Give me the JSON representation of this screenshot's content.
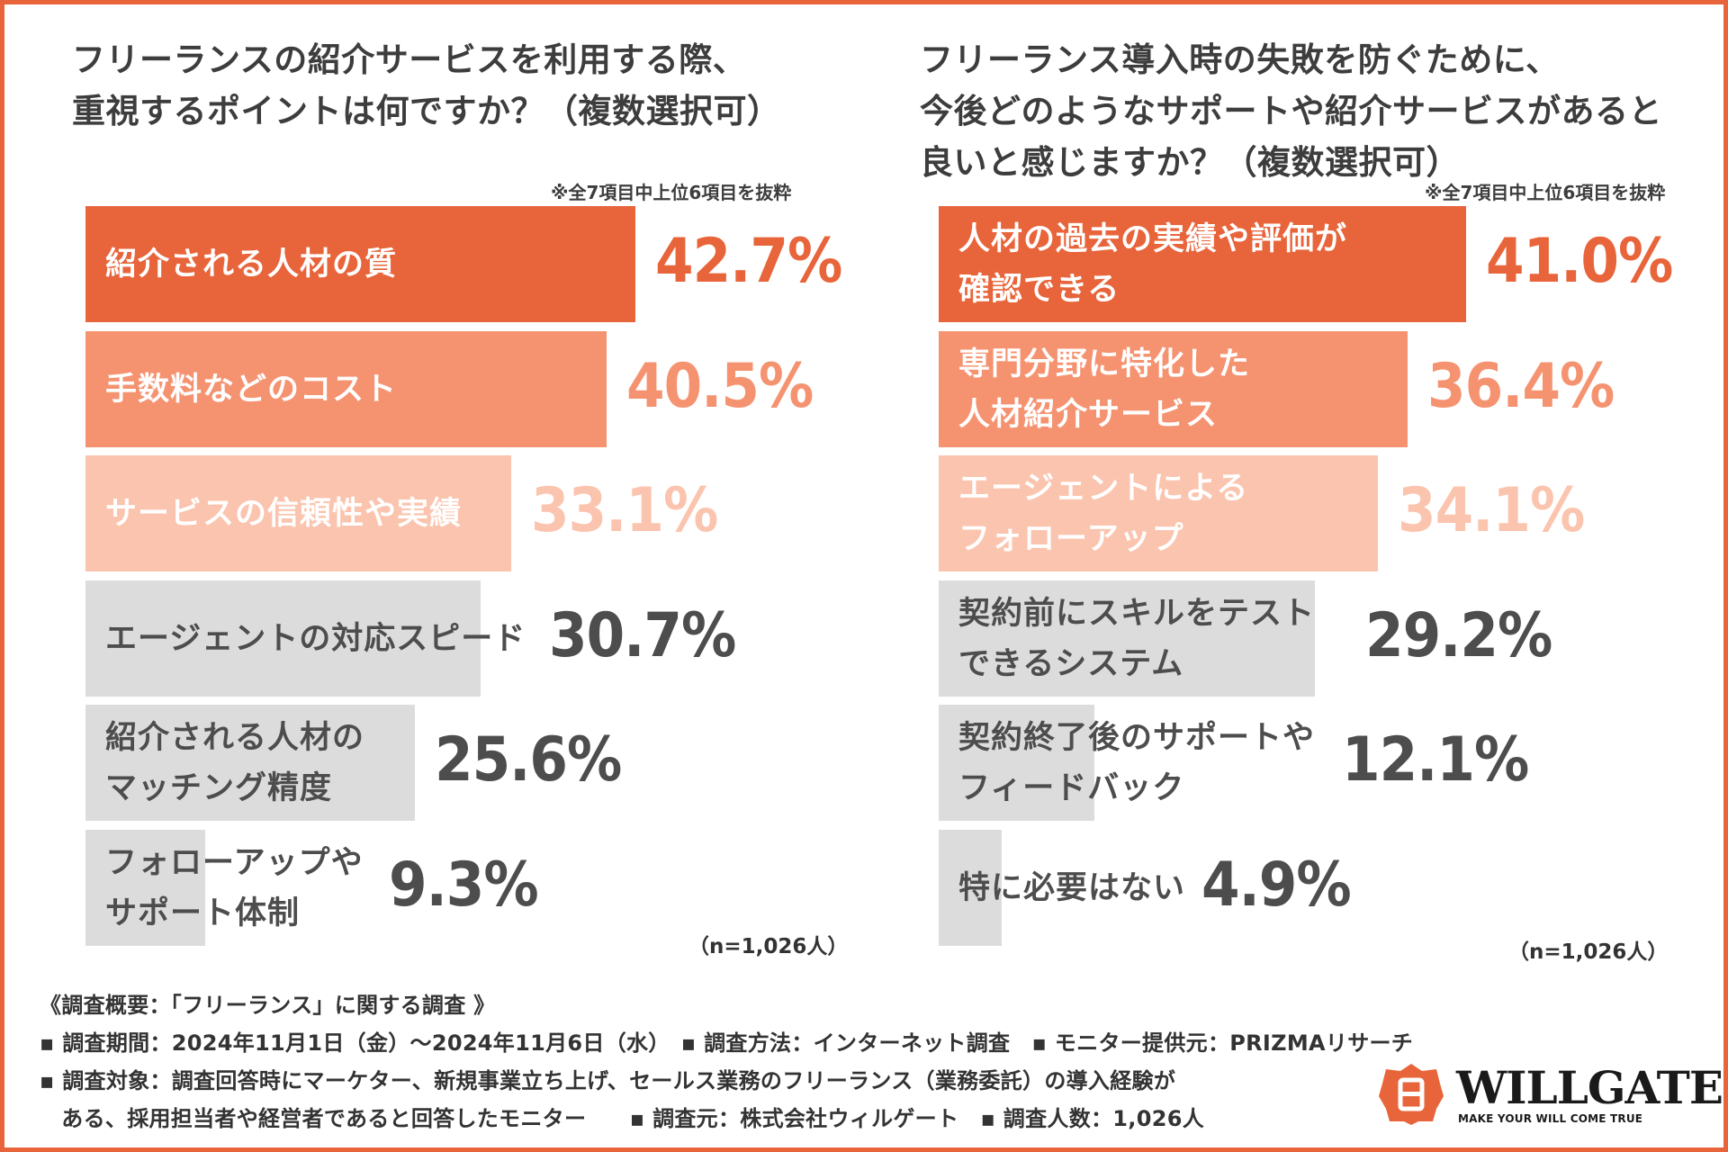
{
  "left": {
    "title": "フリーランスの紹介サービスを利用する際、\n重視するポイントは何ですか？（複数選択可）",
    "note": "※全7項目中上位6項目を抜粋",
    "n": "（n=1,026人）"
  },
  "right": {
    "title": "フリーランス導入時の失敗を防ぐために、\n今後どのようなサポートや紹介サービスがあると\n良いと感じますか？（複数選択可）",
    "note": "※全7項目中上位6項目を抜粋",
    "n": "（n=1,026人）"
  },
  "chart_data": [
    {
      "type": "bar",
      "orientation": "horizontal",
      "title": "フリーランスの紹介サービスを利用する際、重視するポイントは何ですか？（複数選択可）",
      "categories": [
        "紹介される人材の質",
        "手数料などのコスト",
        "サービスの信頼性や実績",
        "エージェントの対応スピード",
        "紹介される人材の\nマッチング精度",
        "フォローアップや\nサポート体制"
      ],
      "values": [
        42.7,
        40.5,
        33.1,
        30.7,
        25.6,
        9.3
      ],
      "value_labels": [
        "42.7%",
        "40.5%",
        "33.1%",
        "30.7%",
        "25.6%",
        "9.3%"
      ],
      "unit": "%",
      "xlim": [
        0,
        72
      ],
      "bar_colors": [
        "#e8643a",
        "#f59371",
        "#fbc4ae",
        "#dcdcdc",
        "#dcdcdc",
        "#dcdcdc"
      ],
      "label_colors": [
        "#ffffff",
        "#ffffff",
        "#ffffff",
        "#4d4d4d",
        "#4d4d4d",
        "#4d4d4d"
      ],
      "value_colors": [
        "#e8643a",
        "#f59371",
        "#fbc4ae",
        "#4d4d4d",
        "#4d4d4d",
        "#4d4d4d"
      ]
    },
    {
      "type": "bar",
      "orientation": "horizontal",
      "title": "フリーランス導入時の失敗を防ぐために、今後どのようなサポートや紹介サービスがあると良いと感じますか？（複数選択可）",
      "categories": [
        "人材の過去の実績や評価が\n確認できる",
        "専門分野に特化した\n人材紹介サービス",
        "エージェントによる\nフォローアップ",
        "契約前にスキルをテスト\nできるシステム",
        "契約終了後のサポートや\nフィードバック",
        "特に必要はない"
      ],
      "values": [
        41.0,
        36.4,
        34.1,
        29.2,
        12.1,
        4.9
      ],
      "value_labels": [
        "41.0%",
        "36.4%",
        "34.1%",
        "29.2%",
        "12.1%",
        "4.9%"
      ],
      "unit": "%",
      "xlim": [
        0,
        72
      ],
      "bar_colors": [
        "#e8643a",
        "#f59371",
        "#fbc4ae",
        "#dcdcdc",
        "#dcdcdc",
        "#dcdcdc"
      ],
      "label_colors": [
        "#ffffff",
        "#ffffff",
        "#ffffff",
        "#4d4d4d",
        "#4d4d4d",
        "#4d4d4d"
      ],
      "value_colors": [
        "#e8643a",
        "#f59371",
        "#fbc4ae",
        "#4d4d4d",
        "#4d4d4d",
        "#4d4d4d"
      ]
    }
  ],
  "footer": {
    "heading": "《調査概要：「フリーランス」に関する調査 》",
    "line1": "▪ 調査期間：2024年11月1日（金）～2024年11月6日（水）　▪ 調査方法：インターネット調査　▪ モニター提供元：PRIZMAリサーチ",
    "line2": "▪ 調査対象：調査回答時にマーケター、新規事業立ち上げ、セールス業務のフリーランス（業務委託）の導入経験が",
    "line3": "　ある、採用担当者や経営者であると回答したモニター　　▪ 調査元：株式会社ウィルゲート　▪ 調査人数：1,026人"
  },
  "logo": {
    "name": "WILLGATE",
    "tagline": "MAKE YOUR WILL COME TRUE",
    "mark_color": "#e8643a"
  }
}
